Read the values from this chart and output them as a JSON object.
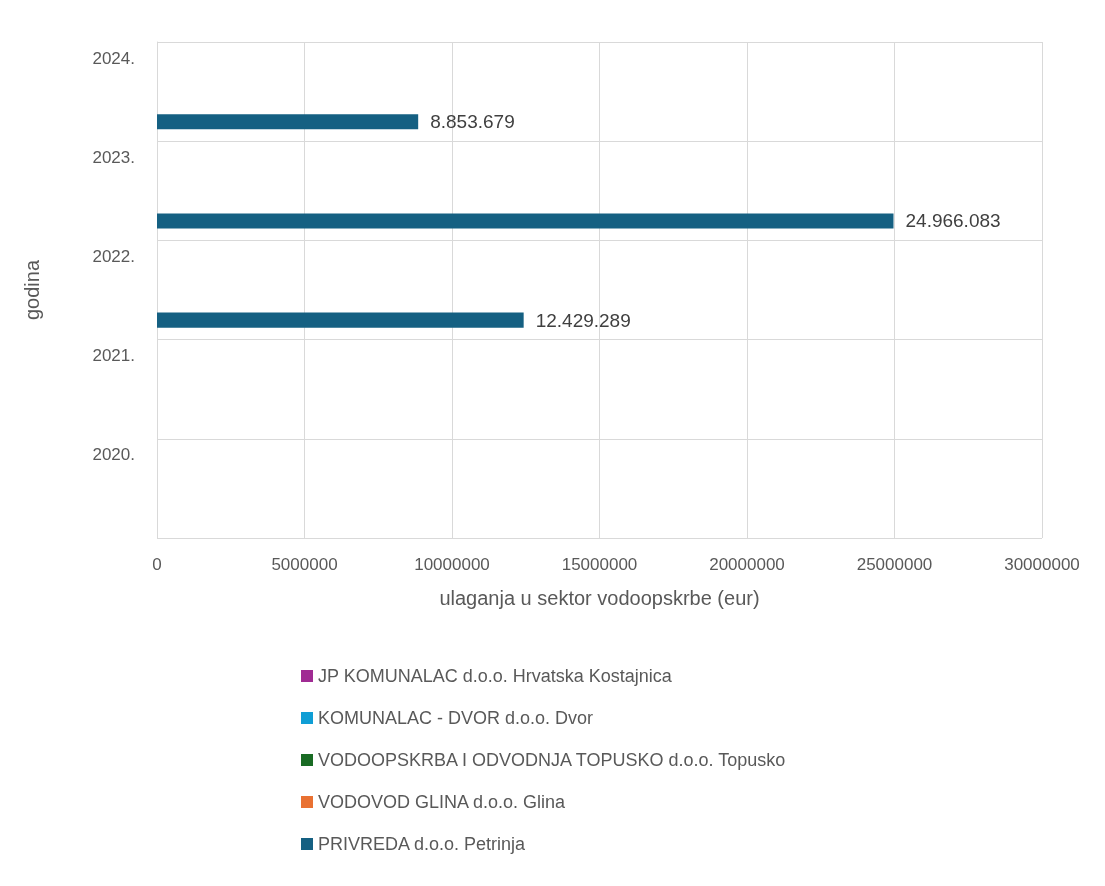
{
  "chart_data": {
    "type": "bar",
    "orientation": "horizontal",
    "categories": [
      "2024.",
      "2023.",
      "2022.",
      "2021.",
      "2020."
    ],
    "series": [
      {
        "name": "JP KOMUNALAC d.o.o. Hrvatska Kostajnica",
        "color": "#a02b93",
        "values": [
          null,
          null,
          null,
          null,
          null
        ]
      },
      {
        "name": "KOMUNALAC - DVOR d.o.o. Dvor",
        "color": "#0f9ed5",
        "values": [
          null,
          null,
          null,
          null,
          null
        ]
      },
      {
        "name": "VODOOPSKRBA I ODVODNJA TOPUSKO d.o.o. Topusko",
        "color": "#196b24",
        "values": [
          null,
          null,
          null,
          null,
          null
        ]
      },
      {
        "name": "VODOVOD GLINA d.o.o. Glina",
        "color": "#e97132",
        "values": [
          null,
          null,
          null,
          null,
          null
        ]
      },
      {
        "name": "PRIVREDA d.o.o. Petrinja",
        "color": "#156082",
        "values": [
          8853679,
          24966083,
          12429289,
          null,
          null
        ],
        "value_labels": [
          "8.853.679",
          "24.966.083",
          "12.429.289",
          null,
          null
        ]
      }
    ],
    "xlabel": "ulaganja u sektor vodoopskrbe (eur)",
    "ylabel": "godina",
    "xlim": [
      0,
      30000000
    ],
    "xticks": [
      0,
      5000000,
      10000000,
      15000000,
      20000000,
      25000000,
      30000000
    ],
    "grid": true,
    "legend": "bottom"
  }
}
